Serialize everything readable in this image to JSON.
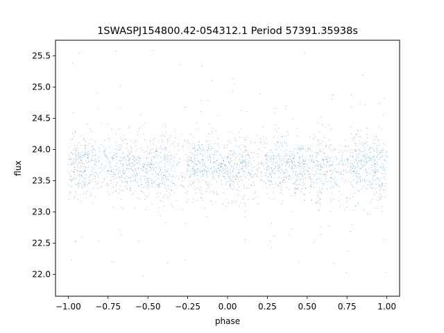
{
  "chart_data": {
    "type": "scatter",
    "title": "1SWASPJ154800.42-054312.1 Period 57391.35938s",
    "xlabel": "phase",
    "ylabel": "flux",
    "xlim": [
      -1.08,
      1.08
    ],
    "ylim": [
      21.65,
      25.75
    ],
    "x_ticks": [
      -1.0,
      -0.75,
      -0.5,
      -0.25,
      0.0,
      0.25,
      0.5,
      0.75,
      1.0
    ],
    "x_tick_labels": [
      "−1.00",
      "−0.75",
      "−0.50",
      "−0.25",
      "0.00",
      "0.25",
      "0.50",
      "0.75",
      "1.00"
    ],
    "y_ticks": [
      22.0,
      22.5,
      23.0,
      23.5,
      24.0,
      24.5,
      25.0,
      25.5
    ],
    "y_tick_labels": [
      "22.0",
      "22.5",
      "23.0",
      "23.5",
      "24.0",
      "24.5",
      "25.0",
      "25.5"
    ],
    "grid": false,
    "marker_color": "#1f77b4",
    "x_range": [
      -1.0,
      1.0
    ],
    "y_range": [
      21.8,
      25.6
    ],
    "core_flux_center": 23.73,
    "core_flux_range": [
      23.3,
      24.2
    ],
    "dips_at_phase": [
      -0.8,
      -0.3,
      0.2,
      0.7
    ],
    "peaks_at_phase": [
      -0.55,
      -0.05,
      0.45,
      0.95
    ]
  }
}
